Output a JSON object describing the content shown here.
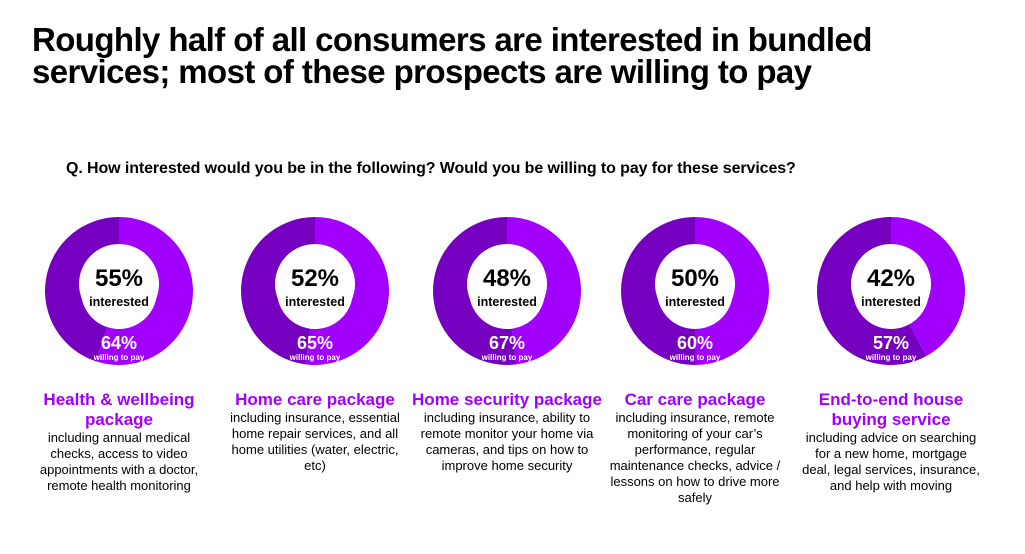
{
  "title": "Roughly half of all consumers are interested in bundled services; most of these prospects are willing to pay",
  "question": "Q. How interested would you be in the following? Would you be willing to pay for these services?",
  "colors": {
    "accent": "#a100ff",
    "dark_purple": "#7500c0",
    "light_purple": "#a100ff",
    "text": "#000000",
    "background": "#ffffff"
  },
  "chart_data": {
    "type": "pie",
    "series": [
      {
        "name": "interested",
        "values": [
          55,
          52,
          48,
          50,
          42
        ]
      },
      {
        "name": "willing to pay",
        "values": [
          64,
          65,
          67,
          60,
          57
        ]
      }
    ],
    "categories": [
      "Health & wellbeing package",
      "Home care package",
      "Home security package",
      "Car care package",
      "End-to-end house buying service"
    ]
  },
  "packages": [
    {
      "interested_value": 55,
      "interested_pct": "55%",
      "interested_label": "interested",
      "pay_value": 64,
      "pay_pct": "64%",
      "pay_label": "willing to pay",
      "title": "Health & wellbeing package",
      "description": "including annual medical checks, access to video appointments with a doctor, remote health monitoring"
    },
    {
      "interested_value": 52,
      "interested_pct": "52%",
      "interested_label": "interested",
      "pay_value": 65,
      "pay_pct": "65%",
      "pay_label": "willing to pay",
      "title": "Home care package",
      "description": "including insurance, essential home repair services, and all home utilities (water, electric, etc)"
    },
    {
      "interested_value": 48,
      "interested_pct": "48%",
      "interested_label": "interested",
      "pay_value": 67,
      "pay_pct": "67%",
      "pay_label": "willing to pay",
      "title": "Home security package",
      "description": "including insurance, ability to remote monitor your home via cameras, and tips on how to improve home security"
    },
    {
      "interested_value": 50,
      "interested_pct": "50%",
      "interested_label": "interested",
      "pay_value": 60,
      "pay_pct": "60%",
      "pay_label": "willing to pay",
      "title": "Car care package",
      "description": "including insurance, remote monitoring of your car’s performance, regular maintenance checks, advice / lessons on how to drive more safely"
    },
    {
      "interested_value": 42,
      "interested_pct": "42%",
      "interested_label": "interested",
      "pay_value": 57,
      "pay_pct": "57%",
      "pay_label": "willing to pay",
      "title": "End-to-end house buying service",
      "description": "including advice on searching for a new home, mortgage deal, legal services, insurance, and help with moving"
    }
  ]
}
